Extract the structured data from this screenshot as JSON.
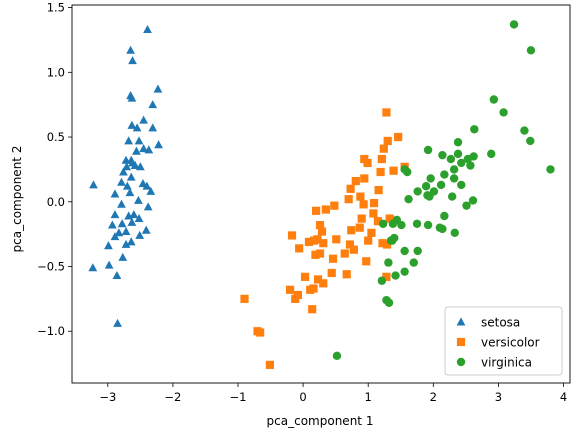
{
  "chart_data": {
    "type": "scatter",
    "title": "",
    "xlabel": "pca_component 1",
    "ylabel": "pca_component 2",
    "xlim": [
      -3.55,
      4.1
    ],
    "ylim": [
      -1.4,
      1.52
    ],
    "xticks": [
      -3,
      -2,
      -1,
      0,
      1,
      2,
      3,
      4
    ],
    "xtick_labels": [
      "−3",
      "−2",
      "−1",
      "0",
      "1",
      "2",
      "3",
      "4"
    ],
    "yticks": [
      -1.0,
      -0.5,
      0.0,
      0.5,
      1.0,
      1.5
    ],
    "ytick_labels": [
      "−1.0",
      "−0.5",
      "0.0",
      "0.5",
      "1.0",
      "1.5"
    ],
    "grid": false,
    "legend_position": "bottom-right",
    "series": [
      {
        "name": "setosa",
        "marker": "triangle",
        "color": "#1f77b4",
        "points": [
          [
            -2.39,
            1.33
          ],
          [
            -2.65,
            1.17
          ],
          [
            -2.62,
            1.09
          ],
          [
            -2.65,
            0.82
          ],
          [
            -2.63,
            0.8
          ],
          [
            -2.23,
            0.87
          ],
          [
            -2.31,
            0.75
          ],
          [
            -2.45,
            0.63
          ],
          [
            -2.63,
            0.59
          ],
          [
            -2.55,
            0.57
          ],
          [
            -2.68,
            0.47
          ],
          [
            -2.52,
            0.47
          ],
          [
            -2.31,
            0.57
          ],
          [
            -2.72,
            0.32
          ],
          [
            -2.64,
            0.32
          ],
          [
            -2.62,
            0.3
          ],
          [
            -2.58,
            0.28
          ],
          [
            -2.71,
            0.27
          ],
          [
            -2.5,
            0.27
          ],
          [
            -2.45,
            0.41
          ],
          [
            -2.37,
            0.4
          ],
          [
            -2.22,
            0.44
          ],
          [
            -2.56,
            0.39
          ],
          [
            -2.76,
            0.23
          ],
          [
            -2.64,
            0.19
          ],
          [
            -2.79,
            0.15
          ],
          [
            -2.7,
            0.12
          ],
          [
            -2.46,
            0.14
          ],
          [
            -2.4,
            0.12
          ],
          [
            -2.66,
            0.07
          ],
          [
            -2.89,
            0.06
          ],
          [
            -2.53,
            0.01
          ],
          [
            -2.34,
            0.08
          ],
          [
            -2.79,
            -0.02
          ],
          [
            -3.22,
            0.13
          ],
          [
            -2.38,
            -0.04
          ],
          [
            -2.89,
            -0.1
          ],
          [
            -2.68,
            -0.11
          ],
          [
            -2.63,
            -0.16
          ],
          [
            -2.6,
            -0.1
          ],
          [
            -2.52,
            -0.13
          ],
          [
            -2.78,
            -0.17
          ],
          [
            -2.93,
            -0.18
          ],
          [
            -2.41,
            -0.22
          ],
          [
            -2.83,
            -0.24
          ],
          [
            -2.72,
            -0.23
          ],
          [
            -2.89,
            -0.27
          ],
          [
            -2.51,
            -0.26
          ],
          [
            -2.64,
            -0.31
          ],
          [
            -2.72,
            -0.33
          ],
          [
            -2.99,
            -0.34
          ],
          [
            -2.77,
            -0.43
          ],
          [
            -3.23,
            -0.51
          ],
          [
            -2.98,
            -0.49
          ],
          [
            -2.86,
            -0.57
          ],
          [
            -2.85,
            -0.94
          ]
        ]
      },
      {
        "name": "versicolor",
        "marker": "square",
        "color": "#ff7f0e",
        "points": [
          [
            1.28,
            0.69
          ],
          [
            1.46,
            0.5
          ],
          [
            1.3,
            0.47
          ],
          [
            1.24,
            0.41
          ],
          [
            1.21,
            0.33
          ],
          [
            0.94,
            0.33
          ],
          [
            0.99,
            0.3
          ],
          [
            1.56,
            0.27
          ],
          [
            1.39,
            0.24
          ],
          [
            1.19,
            0.23
          ],
          [
            0.94,
            0.18
          ],
          [
            0.81,
            0.16
          ],
          [
            0.73,
            0.1
          ],
          [
            1.16,
            0.09
          ],
          [
            0.88,
            0.04
          ],
          [
            1.09,
            -0.01
          ],
          [
            0.7,
            0.02
          ],
          [
            0.93,
            -0.02
          ],
          [
            0.48,
            -0.03
          ],
          [
            1.08,
            -0.09
          ],
          [
            0.9,
            -0.13
          ],
          [
            1.15,
            -0.15
          ],
          [
            0.35,
            -0.06
          ],
          [
            0.2,
            -0.07
          ],
          [
            0.26,
            -0.18
          ],
          [
            0.29,
            -0.23
          ],
          [
            0.87,
            -0.2
          ],
          [
            0.74,
            -0.22
          ],
          [
            1.33,
            -0.13
          ],
          [
            1.05,
            -0.24
          ],
          [
            1.0,
            -0.3
          ],
          [
            0.22,
            -0.29
          ],
          [
            -0.17,
            -0.26
          ],
          [
            0.17,
            -0.3
          ],
          [
            0.09,
            -0.31
          ],
          [
            0.31,
            -0.32
          ],
          [
            0.51,
            -0.29
          ],
          [
            0.72,
            -0.33
          ],
          [
            1.22,
            -0.32
          ],
          [
            1.29,
            -0.33
          ],
          [
            0.26,
            -0.4
          ],
          [
            -0.06,
            -0.36
          ],
          [
            0.78,
            -0.37
          ],
          [
            0.64,
            -0.4
          ],
          [
            0.19,
            -0.41
          ],
          [
            0.46,
            -0.44
          ],
          [
            0.67,
            -0.56
          ],
          [
            0.97,
            -0.46
          ],
          [
            0.44,
            -0.55
          ],
          [
            0.03,
            -0.58
          ],
          [
            0.23,
            -0.6
          ],
          [
            0.31,
            -0.63
          ],
          [
            0.16,
            -0.67
          ],
          [
            1.28,
            -0.58
          ],
          [
            -0.2,
            -0.68
          ],
          [
            -0.08,
            -0.72
          ],
          [
            -0.12,
            -0.75
          ],
          [
            0.11,
            -0.68
          ],
          [
            -0.9,
            -0.75
          ],
          [
            -0.7,
            -1.0
          ],
          [
            -0.66,
            -1.01
          ],
          [
            0.14,
            -0.83
          ],
          [
            -0.51,
            -1.26
          ]
        ]
      },
      {
        "name": "virginica",
        "marker": "circle",
        "color": "#2ca02c",
        "points": [
          [
            3.24,
            1.37
          ],
          [
            3.5,
            1.17
          ],
          [
            2.93,
            0.79
          ],
          [
            3.08,
            0.69
          ],
          [
            2.63,
            0.56
          ],
          [
            3.4,
            0.55
          ],
          [
            3.49,
            0.47
          ],
          [
            2.38,
            0.46
          ],
          [
            1.92,
            0.4
          ],
          [
            2.14,
            0.36
          ],
          [
            2.38,
            0.37
          ],
          [
            2.27,
            0.33
          ],
          [
            2.53,
            0.33
          ],
          [
            2.62,
            0.35
          ],
          [
            2.89,
            0.37
          ],
          [
            2.43,
            0.3
          ],
          [
            1.56,
            0.25
          ],
          [
            2.57,
            0.28
          ],
          [
            3.8,
            0.25
          ],
          [
            2.17,
            0.21
          ],
          [
            2.32,
            0.25
          ],
          [
            1.96,
            0.18
          ],
          [
            1.6,
            0.23
          ],
          [
            2.43,
            0.13
          ],
          [
            2.12,
            0.13
          ],
          [
            1.89,
            0.12
          ],
          [
            1.76,
            0.08
          ],
          [
            2.32,
            0.18
          ],
          [
            2.01,
            0.08
          ],
          [
            1.91,
            0.05
          ],
          [
            1.94,
            0.04
          ],
          [
            1.62,
            0.02
          ],
          [
            2.29,
            0.04
          ],
          [
            2.61,
            0.01
          ],
          [
            2.51,
            -0.03
          ],
          [
            2.17,
            -0.11
          ],
          [
            1.44,
            -0.14
          ],
          [
            1.23,
            -0.17
          ],
          [
            1.38,
            -0.17
          ],
          [
            1.51,
            -0.18
          ],
          [
            1.75,
            -0.17
          ],
          [
            1.92,
            -0.18
          ],
          [
            2.1,
            -0.2
          ],
          [
            2.14,
            -0.21
          ],
          [
            2.33,
            -0.24
          ],
          [
            1.4,
            -0.28
          ],
          [
            1.35,
            -0.3
          ],
          [
            1.37,
            -0.3
          ],
          [
            1.56,
            -0.38
          ],
          [
            1.76,
            -0.38
          ],
          [
            1.31,
            -0.47
          ],
          [
            1.7,
            -0.47
          ],
          [
            1.56,
            -0.54
          ],
          [
            1.42,
            -0.57
          ],
          [
            1.21,
            -0.61
          ],
          [
            1.28,
            -0.76
          ],
          [
            1.32,
            -0.78
          ],
          [
            0.52,
            -1.19
          ]
        ]
      }
    ]
  }
}
